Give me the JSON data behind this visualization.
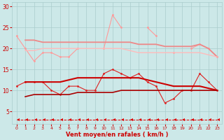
{
  "x": [
    0,
    1,
    2,
    3,
    4,
    5,
    6,
    7,
    8,
    9,
    10,
    11,
    12,
    13,
    14,
    15,
    16,
    17,
    18,
    19,
    20,
    21,
    22,
    23
  ],
  "background_color": "#cce8e8",
  "grid_color": "#aacccc",
  "xlabel": "Vent moyen/en rafales ( km/h )",
  "xlabel_color": "#cc0000",
  "tick_color": "#cc0000",
  "ylim": [
    2,
    31
  ],
  "yticks": [
    5,
    10,
    15,
    20,
    25,
    30
  ],
  "series": [
    {
      "label": "line1_pink_scatter",
      "color": "#ff9999",
      "linewidth": 0.8,
      "marker": "o",
      "markersize": 2.0,
      "linestyle": "-",
      "values": [
        23,
        20,
        17,
        19,
        19,
        18,
        18,
        20,
        null,
        null,
        20,
        28,
        25,
        null,
        null,
        25,
        23,
        null,
        19,
        null,
        20,
        21,
        20,
        18
      ]
    },
    {
      "label": "line2_pink_smooth1",
      "color": "#ee8888",
      "linewidth": 1.3,
      "marker": null,
      "markersize": 0,
      "linestyle": "-",
      "values": [
        null,
        22,
        22,
        21.5,
        21.5,
        21.5,
        21.5,
        21.5,
        21.5,
        21.5,
        21.5,
        21.5,
        21.5,
        21.5,
        21,
        21,
        21,
        20.5,
        20.5,
        20.5,
        20.5,
        21,
        20,
        18
      ]
    },
    {
      "label": "line3_pink_smooth2",
      "color": "#ffbbbb",
      "linewidth": 1.0,
      "marker": null,
      "markersize": 0,
      "linestyle": "-",
      "values": [
        null,
        19.5,
        19.5,
        20,
        20,
        20,
        20,
        20,
        20,
        20,
        20,
        20,
        20,
        19.5,
        19,
        19,
        19,
        19,
        19,
        19,
        19,
        19,
        18.5,
        18
      ]
    },
    {
      "label": "line4_red_scatter",
      "color": "#dd2222",
      "linewidth": 0.8,
      "marker": "o",
      "markersize": 2.0,
      "linestyle": "-",
      "values": [
        11,
        12,
        12,
        12,
        10,
        9,
        11,
        11,
        10,
        10,
        14,
        15,
        14,
        13,
        14,
        12,
        11,
        7,
        8,
        10,
        10,
        14,
        12,
        10
      ]
    },
    {
      "label": "line5_red_smooth1",
      "color": "#cc0000",
      "linewidth": 1.5,
      "marker": null,
      "markersize": 0,
      "linestyle": "-",
      "values": [
        null,
        12,
        12,
        12,
        12,
        12,
        12.5,
        13,
        13,
        13,
        13,
        13,
        13,
        13,
        13,
        12.5,
        12,
        11.5,
        11,
        11,
        11,
        11,
        10.5,
        10
      ]
    },
    {
      "label": "line6_red_smooth2",
      "color": "#aa0000",
      "linewidth": 1.2,
      "marker": null,
      "markersize": 0,
      "linestyle": "-",
      "values": [
        null,
        8.5,
        9,
        9,
        9,
        9,
        9,
        9.5,
        9.5,
        9.5,
        9.5,
        9.5,
        10,
        10,
        10,
        10,
        10,
        10,
        10,
        10,
        10,
        10,
        10,
        10
      ]
    },
    {
      "label": "line7_arrow_dashed",
      "color": "#dd0000",
      "linewidth": 0.7,
      "marker": 4,
      "markersize": 3.5,
      "linestyle": "--",
      "values": [
        3,
        3,
        3,
        3,
        3,
        3,
        3,
        3,
        3,
        3,
        3,
        3,
        3,
        3,
        3,
        3,
        3,
        3,
        3,
        3,
        3,
        3,
        3,
        3
      ]
    }
  ]
}
